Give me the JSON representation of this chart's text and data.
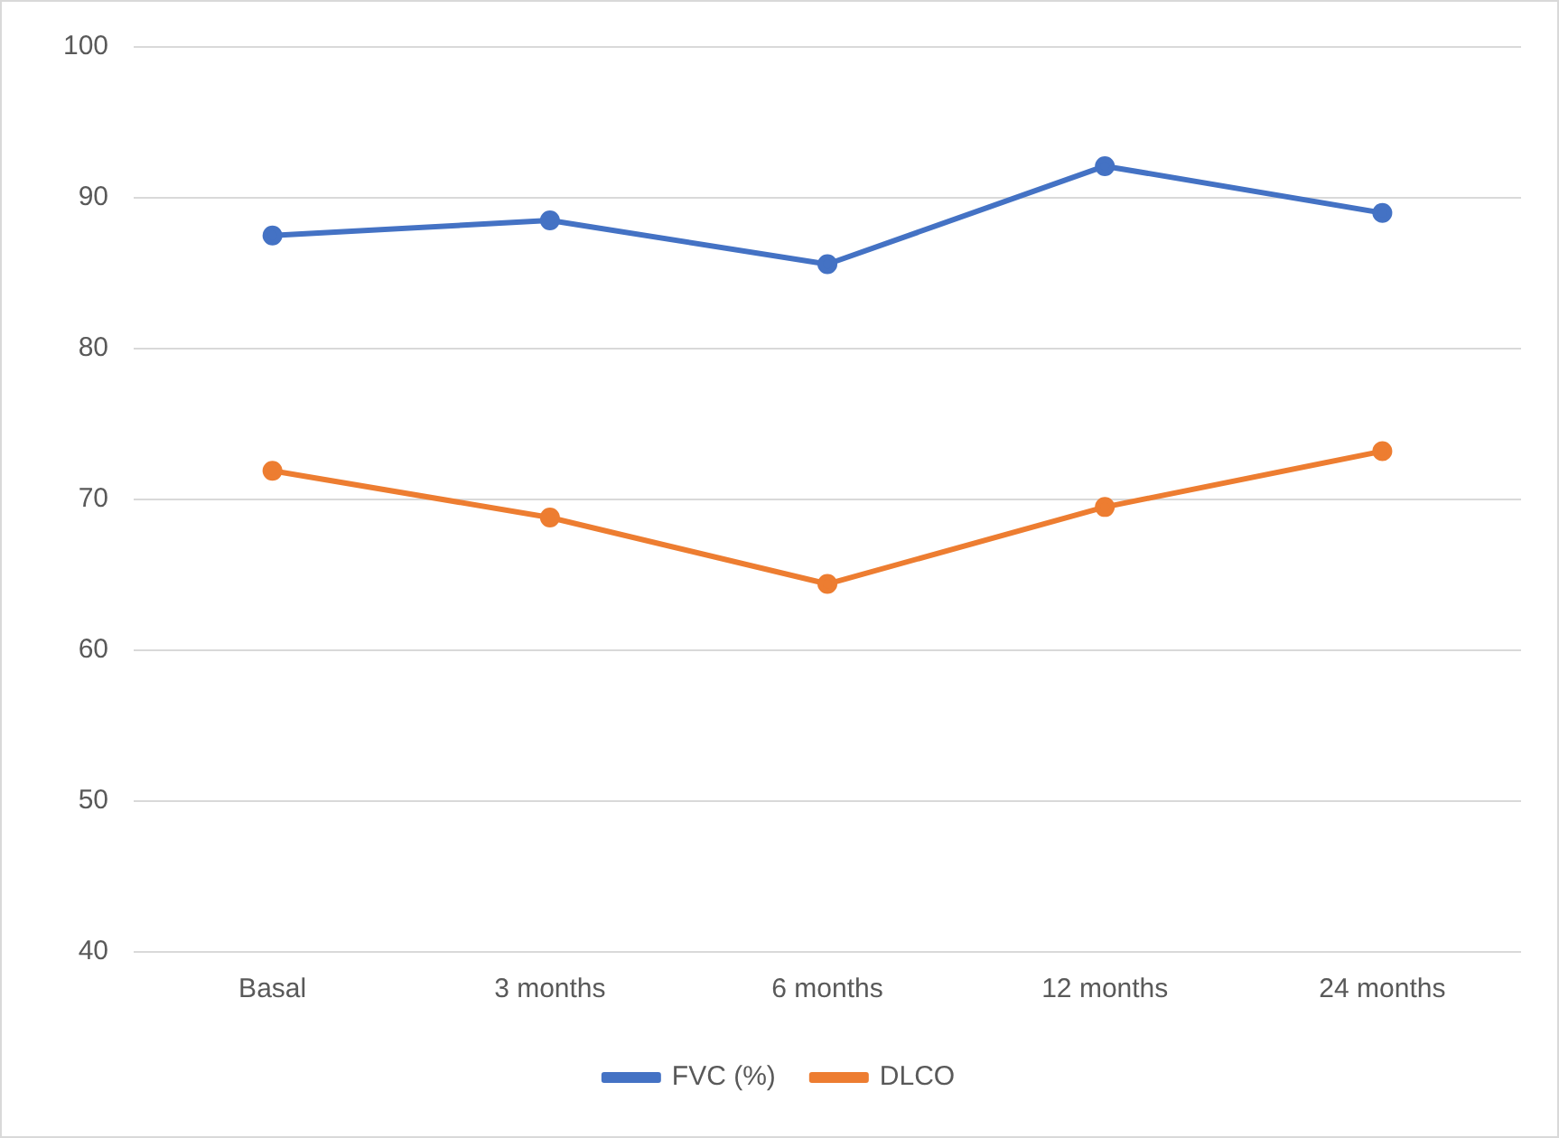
{
  "chart_data": {
    "type": "line",
    "categories": [
      "Basal",
      "3 months",
      "6 months",
      "12 months",
      "24 months"
    ],
    "series": [
      {
        "name": "FVC (%)",
        "color": "#4472c4",
        "values": [
          87.5,
          88.5,
          85.6,
          92.1,
          89.0
        ]
      },
      {
        "name": "DLCO",
        "color": "#ed7d31",
        "values": [
          71.9,
          68.8,
          64.4,
          69.5,
          73.2
        ]
      }
    ],
    "ylim": [
      40,
      100
    ],
    "yticks": [
      40,
      50,
      60,
      70,
      80,
      90,
      100
    ],
    "grid": "y",
    "legend": "bottom",
    "marker": "circle",
    "line_style": "solid"
  }
}
